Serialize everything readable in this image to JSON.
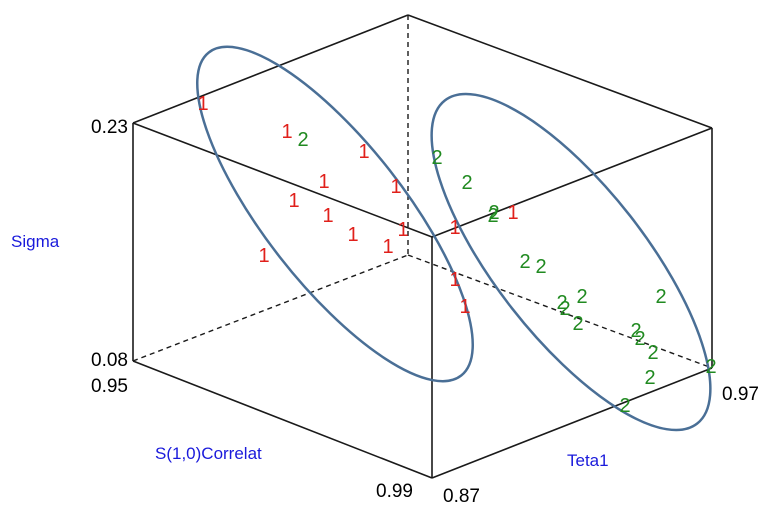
{
  "chart_data": {
    "type": "scatter",
    "axes": {
      "sigma": {
        "label": "Sigma",
        "ticks": [
          "0.23",
          "0.08"
        ]
      },
      "correlation": {
        "label": "S(1,0)Correlat",
        "ticks": [
          "0.95",
          "0.99"
        ]
      },
      "teta": {
        "label": "Teta1",
        "ticks": [
          "0.87",
          "0.97"
        ]
      }
    },
    "series": [
      {
        "name": "1",
        "marker": "1",
        "color": "#e0201b",
        "points": [
          {
            "label": "1"
          },
          {
            "label": "1"
          },
          {
            "label": "1"
          },
          {
            "label": "1"
          },
          {
            "label": "1"
          },
          {
            "label": "1"
          },
          {
            "label": "1"
          },
          {
            "label": "1"
          },
          {
            "label": "1"
          },
          {
            "label": "1"
          },
          {
            "label": "1"
          },
          {
            "label": "1"
          },
          {
            "label": "1"
          },
          {
            "label": "1"
          },
          {
            "label": "1"
          }
        ]
      },
      {
        "name": "2",
        "marker": "2",
        "color": "#208a20",
        "points": [
          {
            "label": "2"
          },
          {
            "label": "2"
          },
          {
            "label": "2"
          },
          {
            "label": "2"
          },
          {
            "label": "2"
          },
          {
            "label": "2"
          },
          {
            "label": "2"
          },
          {
            "label": "2"
          },
          {
            "label": "2"
          },
          {
            "label": "2"
          },
          {
            "label": "2"
          },
          {
            "label": "2"
          },
          {
            "label": "2"
          },
          {
            "label": "2"
          },
          {
            "label": "2"
          },
          {
            "label": "2"
          },
          {
            "label": "2"
          },
          {
            "label": "2"
          }
        ]
      }
    ],
    "cluster_outline_color": "#4a6f96",
    "grid": false,
    "legend": "none"
  }
}
